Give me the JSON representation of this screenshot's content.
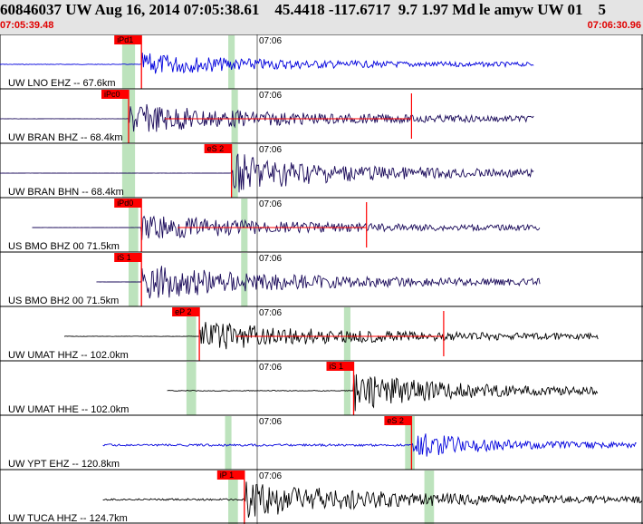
{
  "header": {
    "title": "60846037 UW Aug 16, 2014 07:05:38.61    45.4418 -117.6717  9.7 1.97 Md le amyw UW 01    5",
    "time_start": "07:05:39.48",
    "time_end": "07:06:30.96"
  },
  "tick_label": "07:06",
  "colors": {
    "header_bg": "#e4e4e4",
    "time_label": "#e00000",
    "pick_flag": "#ff0000",
    "pick_window": "#bde3bd",
    "trace_blue": "#0000dd",
    "trace_navy": "#1a0a5a",
    "trace_black": "#000000"
  },
  "traces": [
    {
      "label": "UW LNO EHZ -- 67.6km",
      "color": "trace_blue",
      "pick": "iPd1",
      "start": 0.0,
      "onset": 0.22,
      "end": 0.83,
      "amp": 0.5,
      "pre": 0.08,
      "green": [
        0.19,
        0.21
      ],
      "green2": [
        0.355,
        0.365
      ],
      "coda": null
    },
    {
      "label": "UW BRAN BHZ -- 68.4km",
      "color": "trace_navy",
      "pick": "iPc0",
      "start": 0.0,
      "onset": 0.2,
      "end": 0.83,
      "amp": 0.7,
      "pre": 0.04,
      "green": [
        0.19,
        0.21
      ],
      "green2": [
        0.36,
        0.37
      ],
      "coda": 0.64
    },
    {
      "label": "UW BRAN BHN -- 68.4km",
      "color": "trace_navy",
      "pick": "eS 2",
      "start": 0.0,
      "onset": 0.36,
      "end": 0.83,
      "amp": 0.9,
      "pre": 0.02,
      "green": [
        0.19,
        0.21
      ],
      "green2": [
        0.36,
        0.37
      ],
      "coda": null
    },
    {
      "label": "US BMO BHZ 00 71.5km",
      "color": "trace_navy",
      "pick": "iPd0",
      "start": 0.05,
      "onset": 0.22,
      "end": 0.84,
      "amp": 0.6,
      "pre": 0.02,
      "green": [
        0.2,
        0.215
      ],
      "green2": [
        0.375,
        0.385
      ],
      "coda": 0.57
    },
    {
      "label": "US BMO BH2 00 71.5km",
      "color": "trace_navy",
      "pick": "iS 1",
      "start": 0.15,
      "onset": 0.22,
      "end": 0.84,
      "amp": 0.8,
      "pre": 0.02,
      "green": [
        0.2,
        0.215
      ],
      "green2": [
        0.375,
        0.385
      ],
      "coda": null
    },
    {
      "label": "UW UMAT HHZ -- 102.0km",
      "color": "trace_black",
      "pick": "eP 2",
      "start": 0.1,
      "onset": 0.31,
      "end": 0.93,
      "amp": 0.7,
      "pre": 0.06,
      "green": [
        0.29,
        0.305
      ],
      "green2": [
        0.535,
        0.545
      ],
      "coda": 0.69
    },
    {
      "label": "UW UMAT HHE -- 102.0km",
      "color": "trace_black",
      "pick": "iS 1",
      "start": 0.26,
      "onset": 0.55,
      "end": 0.93,
      "amp": 0.9,
      "pre": 0.1,
      "green": [
        0.29,
        0.305
      ],
      "green2": [
        0.535,
        0.545
      ],
      "coda": null
    },
    {
      "label": "UW YPT EHZ -- 120.8km",
      "color": "trace_blue",
      "pick": "eS 2",
      "start": 0.16,
      "onset": 0.64,
      "end": 0.99,
      "amp": 0.6,
      "pre": 0.3,
      "green": [
        0.35,
        0.36
      ],
      "green2": [
        0.63,
        0.645
      ],
      "coda": null
    },
    {
      "label": "UW TUCA HHZ -- 124.7km",
      "color": "trace_black",
      "pick": "iP 1",
      "start": 0.16,
      "onset": 0.38,
      "end": 1.0,
      "amp": 0.8,
      "pre": 0.25,
      "green": [
        0.355,
        0.37
      ],
      "green2": [
        0.66,
        0.675
      ],
      "coda": null
    }
  ]
}
